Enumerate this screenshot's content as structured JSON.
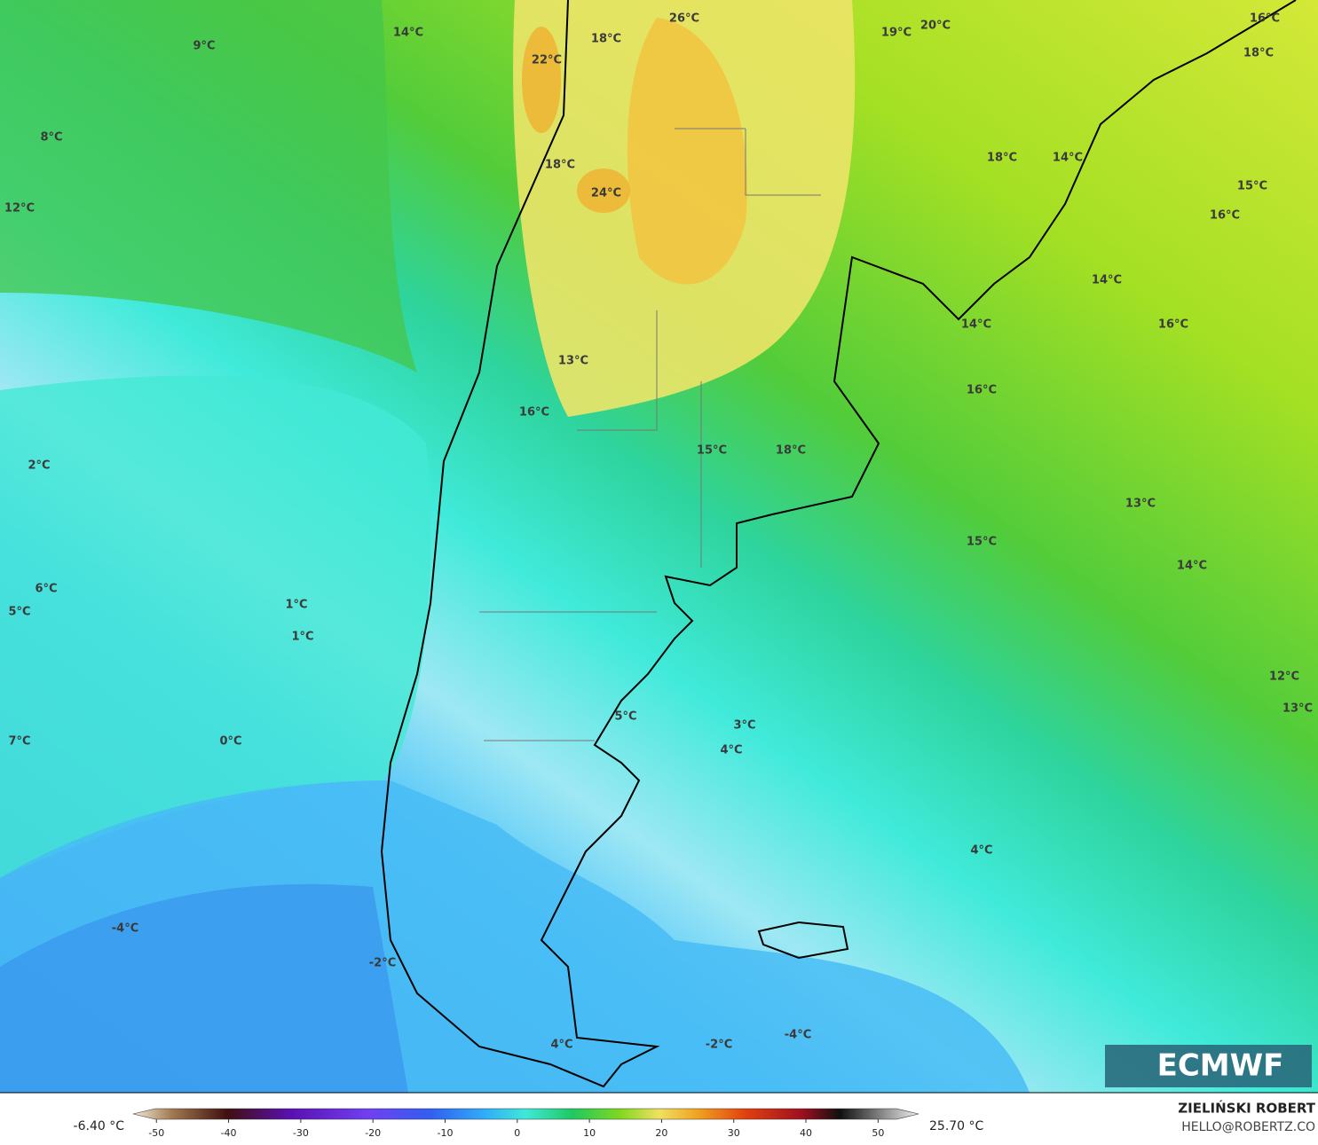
{
  "map": {
    "labels": [
      "14°C",
      "9°C",
      "22°C",
      "18°C",
      "26°C",
      "19°C",
      "20°C",
      "16°C",
      "18°C",
      "8°C",
      "12°C",
      "18°C",
      "24°C",
      "18°C",
      "14°C",
      "15°C",
      "16°C",
      "14°C",
      "14°C",
      "16°C",
      "13°C",
      "16°C",
      "16°C",
      "15°C",
      "18°C",
      "2°C",
      "13°C",
      "15°C",
      "14°C",
      "6°C",
      "5°C",
      "1°C",
      "1°C",
      "12°C",
      "13°C",
      "5°C",
      "3°C",
      "4°C",
      "7°C",
      "0°C",
      "4°C",
      "-4°C",
      "-2°C",
      "-4°C",
      "-2°C",
      "4°C"
    ],
    "logo": "ECMWF"
  },
  "colorbar": {
    "min_label": "-6.40 °C",
    "max_label": "25.70 °C",
    "range": [
      -52,
      55
    ],
    "ticks": [
      -50,
      -40,
      -30,
      -20,
      -10,
      0,
      10,
      20,
      30,
      40,
      50
    ]
  },
  "credits": {
    "author": "ZIELIŃSKI ROBERT",
    "contact": "HELLO@ROBERTZ.CO"
  }
}
